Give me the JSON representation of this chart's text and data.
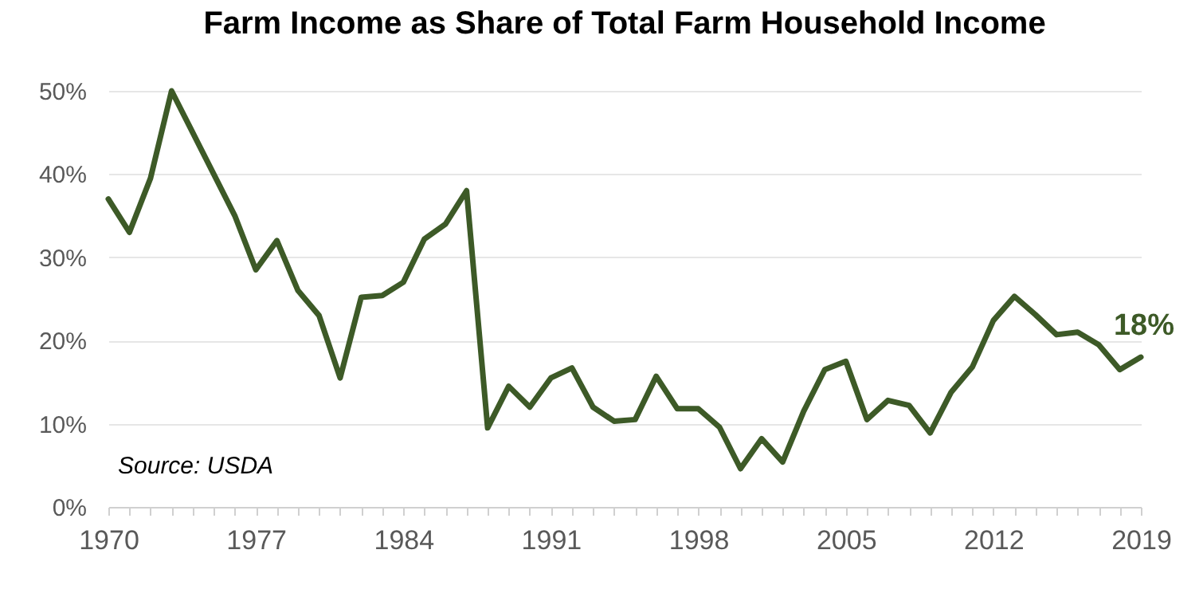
{
  "chart_data": {
    "type": "line",
    "title": "Farm Income as Share of Total Farm Household Income",
    "x": [
      1970,
      1971,
      1972,
      1973,
      1974,
      1975,
      1976,
      1977,
      1978,
      1979,
      1980,
      1981,
      1982,
      1983,
      1984,
      1985,
      1986,
      1987,
      1988,
      1989,
      1990,
      1991,
      1992,
      1993,
      1994,
      1995,
      1996,
      1997,
      1998,
      1999,
      2000,
      2001,
      2002,
      2003,
      2004,
      2005,
      2006,
      2007,
      2008,
      2009,
      2010,
      2011,
      2012,
      2013,
      2014,
      2015,
      2016,
      2017,
      2018,
      2019
    ],
    "series": [
      {
        "color": "#3d5a27",
        "values": [
          37,
          33,
          39.5,
          50,
          45,
          40,
          35,
          28.5,
          32,
          26,
          23,
          15.5,
          25.2,
          25.4,
          27,
          32.2,
          34,
          38,
          9.5,
          14.5,
          12,
          15.5,
          16.7,
          12,
          10.3,
          10.5,
          15.7,
          11.8,
          11.8,
          9.6,
          4.6,
          8.2,
          5.4,
          11.5,
          16.5,
          17.5,
          10.5,
          12.8,
          12.2,
          8.9,
          13.8,
          16.8,
          22.4,
          25.3,
          23.1,
          20.7,
          21,
          19.5,
          16.5,
          18
        ],
        "value_labels": [
          null,
          null,
          null,
          null,
          null,
          null,
          null,
          null,
          null,
          null,
          null,
          null,
          null,
          null,
          null,
          null,
          null,
          null,
          null,
          null,
          null,
          null,
          null,
          null,
          null,
          null,
          null,
          null,
          null,
          null,
          null,
          null,
          null,
          null,
          null,
          null,
          null,
          null,
          null,
          null,
          null,
          null,
          null,
          null,
          null,
          null,
          null,
          null,
          null,
          "18%"
        ]
      }
    ],
    "xlim": [
      1970,
      2019
    ],
    "xticks": [
      1970,
      {
        "value": 1971,
        "label": null
      },
      {
        "value": 1972,
        "label": null
      },
      {
        "value": 1973,
        "label": null
      },
      {
        "value": 1974,
        "label": null
      },
      {
        "value": 1975,
        "label": null
      },
      {
        "value": 1976,
        "label": null
      },
      1977,
      {
        "value": 1978,
        "label": null
      },
      {
        "value": 1979,
        "label": null
      },
      {
        "value": 1980,
        "label": null
      },
      {
        "value": 1981,
        "label": null
      },
      {
        "value": 1982,
        "label": null
      },
      {
        "value": 1983,
        "label": null
      },
      1984,
      {
        "value": 1985,
        "label": null
      },
      {
        "value": 1986,
        "label": null
      },
      {
        "value": 1987,
        "label": null
      },
      {
        "value": 1988,
        "label": null
      },
      {
        "value": 1989,
        "label": null
      },
      {
        "value": 1990,
        "label": null
      },
      1991,
      {
        "value": 1992,
        "label": null
      },
      {
        "value": 1993,
        "label": null
      },
      {
        "value": 1994,
        "label": null
      },
      {
        "value": 1995,
        "label": null
      },
      {
        "value": 1996,
        "label": null
      },
      {
        "value": 1997,
        "label": null
      },
      1998,
      {
        "value": 1999,
        "label": null
      },
      {
        "value": 2000,
        "label": null
      },
      {
        "value": 2001,
        "label": null
      },
      {
        "value": 2002,
        "label": null
      },
      {
        "value": 2003,
        "label": null
      },
      {
        "value": 2004,
        "label": null
      },
      2005,
      {
        "value": 2006,
        "label": null
      },
      {
        "value": 2007,
        "label": null
      },
      {
        "value": 2008,
        "label": null
      },
      {
        "value": 2009,
        "label": null
      },
      {
        "value": 2010,
        "label": null
      },
      {
        "value": 2011,
        "label": null
      },
      2012,
      {
        "value": 2013,
        "label": null
      },
      {
        "value": 2014,
        "label": null
      },
      {
        "value": 2015,
        "label": null
      },
      {
        "value": 2016,
        "label": null
      },
      {
        "value": 2017,
        "label": null
      },
      {
        "value": 2018,
        "label": null
      },
      2019
    ],
    "ylim": [
      0,
      50
    ],
    "yticks": [
      {
        "value": 0,
        "label": "0%"
      },
      {
        "value": 10,
        "label": "10%"
      },
      {
        "value": 20,
        "label": "20%"
      },
      {
        "value": 30,
        "label": "30%"
      },
      {
        "value": 40,
        "label": "40%"
      },
      {
        "value": 50,
        "label": "50%"
      }
    ],
    "grid": "y",
    "marker": "none",
    "line_style": "solid",
    "annotations": [
      "Source: USDA"
    ]
  }
}
